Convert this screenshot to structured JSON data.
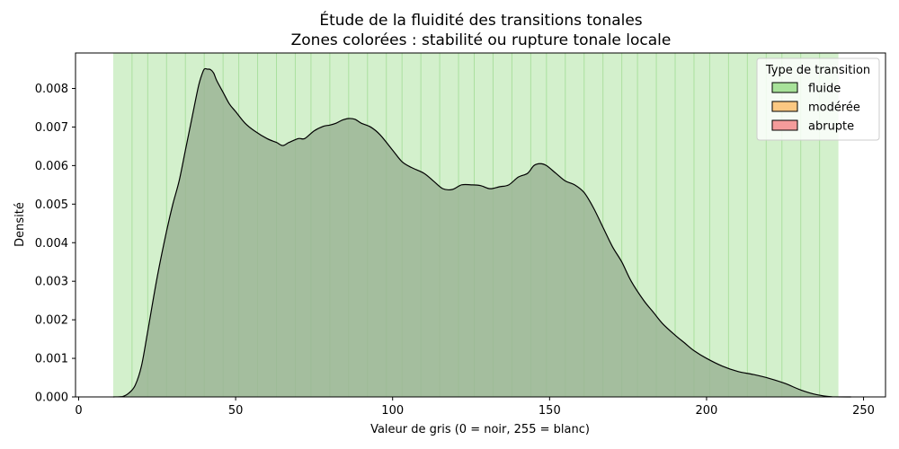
{
  "chart_data": {
    "type": "area",
    "title": "Étude de la fluidité des transitions tonales",
    "subtitle": "Zones colorées : stabilité ou rupture tonale locale",
    "xlabel": "Valeur de gris (0 = noir, 255 = blanc)",
    "ylabel": "Densité",
    "xlim": [
      -1,
      257
    ],
    "ylim": [
      0,
      0.00892
    ],
    "x_ticks": [
      0,
      50,
      100,
      150,
      200,
      250
    ],
    "y_ticks": [
      0.0,
      0.001,
      0.002,
      0.003,
      0.004,
      0.005,
      0.006,
      0.007,
      0.008
    ],
    "x_tick_labels": [
      "0",
      "50",
      "100",
      "150",
      "200",
      "250"
    ],
    "y_tick_labels": [
      "0.000",
      "0.001",
      "0.002",
      "0.003",
      "0.004",
      "0.005",
      "0.006",
      "0.007",
      "0.008"
    ],
    "grid": false,
    "legend": {
      "title": "Type de transition",
      "placement": "top-right",
      "items": [
        {
          "label": "fluide",
          "color": "#a8e29a"
        },
        {
          "label": "modérée",
          "color": "#fcc882"
        },
        {
          "label": "abrupte",
          "color": "#f59b9b"
        }
      ]
    },
    "zones": {
      "label": "fluide",
      "color": "#a8e29a",
      "start": 11,
      "end": 242,
      "boundaries": [
        11,
        17,
        22,
        28,
        34,
        40,
        46,
        51,
        57,
        63,
        69,
        74,
        80,
        86,
        92,
        98,
        103,
        109,
        115,
        121,
        126,
        132,
        138,
        144,
        149,
        155,
        161,
        167,
        173,
        178,
        184,
        190,
        196,
        201,
        207,
        213,
        219,
        224,
        230,
        236,
        242
      ]
    },
    "density_color": "#9bb595",
    "x": [
      11,
      14,
      16,
      18,
      20,
      22,
      25,
      28,
      30,
      32,
      34,
      36,
      38,
      39,
      40,
      41,
      42,
      43,
      44,
      46,
      48,
      50,
      53,
      56,
      60,
      63,
      65,
      67,
      70,
      72,
      75,
      78,
      80,
      82,
      84,
      86,
      88,
      90,
      93,
      96,
      100,
      103,
      106,
      110,
      113,
      116,
      119,
      122,
      125,
      128,
      131,
      134,
      137,
      140,
      143,
      145,
      147,
      149,
      152,
      155,
      158,
      161,
      164,
      167,
      170,
      173,
      176,
      180,
      183,
      186,
      190,
      193,
      196,
      200,
      205,
      210,
      215,
      220,
      225,
      230,
      235,
      240,
      246
    ],
    "y": [
      0.0,
      1e-05,
      0.0001,
      0.0003,
      0.0008,
      0.0017,
      0.0031,
      0.0043,
      0.005,
      0.0056,
      0.0064,
      0.0072,
      0.008,
      0.0083,
      0.0085,
      0.0085,
      0.00849,
      0.0084,
      0.0082,
      0.0079,
      0.0076,
      0.0074,
      0.0071,
      0.0069,
      0.0067,
      0.0066,
      0.00652,
      0.0066,
      0.0067,
      0.0067,
      0.0069,
      0.00702,
      0.00705,
      0.0071,
      0.00718,
      0.00722,
      0.0072,
      0.0071,
      0.007,
      0.0068,
      0.0064,
      0.0061,
      0.00595,
      0.0058,
      0.0056,
      0.0054,
      0.00538,
      0.0055,
      0.0055,
      0.00548,
      0.0054,
      0.00545,
      0.0055,
      0.0057,
      0.0058,
      0.006,
      0.00605,
      0.006,
      0.0058,
      0.0056,
      0.0055,
      0.0053,
      0.0049,
      0.0044,
      0.0039,
      0.0035,
      0.003,
      0.0025,
      0.0022,
      0.0019,
      0.0016,
      0.0014,
      0.0012,
      0.001,
      0.0008,
      0.00066,
      0.00058,
      0.00048,
      0.00035,
      0.00018,
      6e-05,
      5e-06,
      0.0
    ]
  }
}
